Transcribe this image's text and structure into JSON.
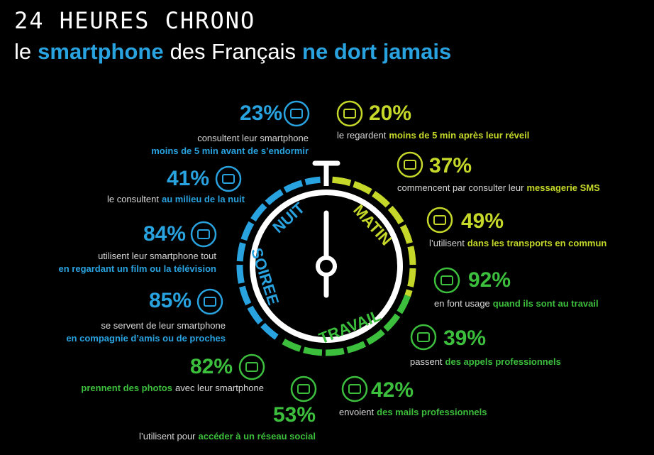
{
  "header": {
    "title": "24 HEURES CHRONO",
    "subtitle": [
      {
        "text": "le"
      },
      {
        "text": "smartphone",
        "highlight": true
      },
      {
        "text": "des Français"
      },
      {
        "text": "ne dort jamais",
        "highlight": true
      }
    ]
  },
  "clock": {
    "labels": [
      {
        "text": "NUIT",
        "color": "#29a3e0"
      },
      {
        "text": "MATIN",
        "color": "#c5d82a"
      },
      {
        "text": "TRAVAIL",
        "color": "#3cbf3c"
      },
      {
        "text": "SOIREE",
        "color": "#29a3e0"
      }
    ]
  },
  "stats": [
    {
      "percent": "23%",
      "color": "#29a3e0",
      "lines": [
        [
          {
            "text": "consultent leur smartphone"
          }
        ],
        [
          {
            "text": "moins de 5 min avant de s’endormir",
            "highlight": true
          }
        ]
      ]
    },
    {
      "percent": "41%",
      "color": "#29a3e0",
      "lines": [
        [
          {
            "text": "le consultent"
          },
          {
            "text": "au milieu de la nuit",
            "highlight": true
          }
        ]
      ]
    },
    {
      "percent": "84%",
      "color": "#29a3e0",
      "lines": [
        [
          {
            "text": "utilisent leur smartphone tout"
          }
        ],
        [
          {
            "text": "en regardant un film ou la télévision",
            "highlight": true
          }
        ]
      ]
    },
    {
      "percent": "85%",
      "color": "#29a3e0",
      "lines": [
        [
          {
            "text": "se servent de leur smartphone"
          }
        ],
        [
          {
            "text": "en compagnie d’amis ou de proches",
            "highlight": true
          }
        ]
      ]
    },
    {
      "percent": "82%",
      "color": "#3cbf3c",
      "lines": [
        [
          {
            "text": "prennent des photos",
            "highlight": true
          },
          {
            "text": "avec leur smartphone"
          }
        ]
      ]
    },
    {
      "percent": "53%",
      "color": "#3cbf3c",
      "lines": [
        [
          {
            "text": "l’utilisent pour"
          },
          {
            "text": "accéder à un réseau social",
            "highlight": true
          }
        ]
      ]
    },
    {
      "percent": "20%",
      "color": "#c5d82a",
      "lines": [
        [
          {
            "text": "le regardent"
          },
          {
            "text": "moins de 5 min après leur réveil",
            "highlight": true
          }
        ]
      ]
    },
    {
      "percent": "37%",
      "color": "#c5d82a",
      "lines": [
        [
          {
            "text": "commencent par consulter leur"
          },
          {
            "text": "messagerie SMS",
            "highlight": true
          }
        ]
      ]
    },
    {
      "percent": "49%",
      "color": "#c5d82a",
      "lines": [
        [
          {
            "text": "l’utilisent"
          },
          {
            "text": "dans les transports en commun",
            "highlight": true
          }
        ]
      ]
    },
    {
      "percent": "92%",
      "color": "#3cbf3c",
      "lines": [
        [
          {
            "text": "en font usage"
          },
          {
            "text": "quand ils sont au travail",
            "highlight": true
          }
        ]
      ]
    },
    {
      "percent": "39%",
      "color": "#3cbf3c",
      "lines": [
        [
          {
            "text": "passent"
          },
          {
            "text": "des appels professionnels",
            "highlight": true
          }
        ]
      ]
    },
    {
      "percent": "42%",
      "color": "#3cbf3c",
      "lines": [
        [
          {
            "text": "envoient"
          },
          {
            "text": "des mails professionnels",
            "highlight": true
          }
        ]
      ]
    }
  ]
}
